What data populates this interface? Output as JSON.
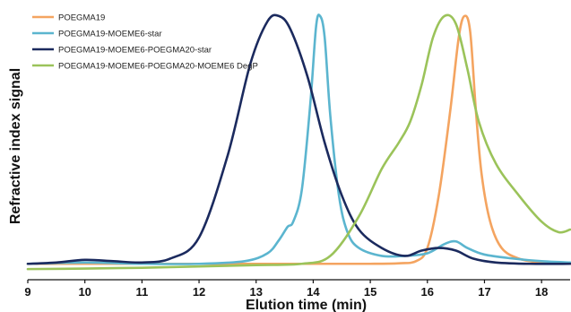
{
  "chart_data": {
    "type": "line",
    "title": "",
    "xlabel": "Elution time (min)",
    "ylabel": "Refractive index signal",
    "xlim": [
      9,
      18.5
    ],
    "ylim": [
      0,
      1
    ],
    "x_ticks": [
      9,
      10,
      11,
      12,
      13,
      14,
      15,
      16,
      17,
      18
    ],
    "y_ticks_shown": false,
    "grid": false,
    "legend_position": "top-left",
    "series": [
      {
        "name": "POEGMA19",
        "color": "#F4A460",
        "points": [
          [
            9.0,
            0.04
          ],
          [
            10.0,
            0.04
          ],
          [
            11.0,
            0.04
          ],
          [
            12.0,
            0.04
          ],
          [
            13.0,
            0.04
          ],
          [
            14.0,
            0.04
          ],
          [
            15.0,
            0.04
          ],
          [
            15.5,
            0.042
          ],
          [
            15.8,
            0.05
          ],
          [
            16.0,
            0.1
          ],
          [
            16.2,
            0.3
          ],
          [
            16.4,
            0.62
          ],
          [
            16.55,
            0.9
          ],
          [
            16.65,
            0.98
          ],
          [
            16.75,
            0.92
          ],
          [
            16.85,
            0.62
          ],
          [
            16.95,
            0.38
          ],
          [
            17.1,
            0.2
          ],
          [
            17.3,
            0.1
          ],
          [
            17.6,
            0.06
          ],
          [
            18.0,
            0.045
          ],
          [
            18.5,
            0.04
          ]
        ]
      },
      {
        "name": "POEGMA19-MOEME6-star",
        "color": "#5BB5CF",
        "points": [
          [
            9.0,
            0.04
          ],
          [
            10.0,
            0.045
          ],
          [
            11.0,
            0.04
          ],
          [
            12.0,
            0.04
          ],
          [
            12.8,
            0.05
          ],
          [
            13.2,
            0.08
          ],
          [
            13.4,
            0.13
          ],
          [
            13.55,
            0.18
          ],
          [
            13.65,
            0.2
          ],
          [
            13.8,
            0.32
          ],
          [
            13.95,
            0.65
          ],
          [
            14.05,
            0.94
          ],
          [
            14.12,
            0.98
          ],
          [
            14.2,
            0.9
          ],
          [
            14.3,
            0.6
          ],
          [
            14.45,
            0.3
          ],
          [
            14.6,
            0.16
          ],
          [
            14.8,
            0.1
          ],
          [
            15.2,
            0.07
          ],
          [
            15.6,
            0.07
          ],
          [
            16.0,
            0.08
          ],
          [
            16.3,
            0.115
          ],
          [
            16.5,
            0.125
          ],
          [
            16.7,
            0.1
          ],
          [
            17.0,
            0.075
          ],
          [
            17.5,
            0.06
          ],
          [
            18.0,
            0.05
          ],
          [
            18.5,
            0.045
          ]
        ]
      },
      {
        "name": "POEGMA19-MOEME6-POEGMA20-star",
        "color": "#1B2A5E",
        "points": [
          [
            9.0,
            0.04
          ],
          [
            9.5,
            0.045
          ],
          [
            10.0,
            0.055
          ],
          [
            10.5,
            0.05
          ],
          [
            11.0,
            0.045
          ],
          [
            11.5,
            0.06
          ],
          [
            12.0,
            0.14
          ],
          [
            12.5,
            0.45
          ],
          [
            12.9,
            0.8
          ],
          [
            13.2,
            0.96
          ],
          [
            13.4,
            0.98
          ],
          [
            13.6,
            0.93
          ],
          [
            13.9,
            0.75
          ],
          [
            14.2,
            0.5
          ],
          [
            14.5,
            0.3
          ],
          [
            14.8,
            0.17
          ],
          [
            15.2,
            0.1
          ],
          [
            15.6,
            0.07
          ],
          [
            15.9,
            0.09
          ],
          [
            16.2,
            0.1
          ],
          [
            16.5,
            0.09
          ],
          [
            16.8,
            0.06
          ],
          [
            17.2,
            0.045
          ],
          [
            17.8,
            0.04
          ],
          [
            18.5,
            0.04
          ]
        ]
      },
      {
        "name": "POEGMA19-MOEME6-POEGMA20-MOEME6 DegP",
        "color": "#9BC35A",
        "points": [
          [
            9.0,
            0.02
          ],
          [
            10.0,
            0.022
          ],
          [
            11.0,
            0.025
          ],
          [
            12.0,
            0.03
          ],
          [
            13.0,
            0.035
          ],
          [
            13.8,
            0.04
          ],
          [
            14.3,
            0.07
          ],
          [
            14.8,
            0.22
          ],
          [
            15.2,
            0.4
          ],
          [
            15.5,
            0.5
          ],
          [
            15.7,
            0.58
          ],
          [
            15.9,
            0.72
          ],
          [
            16.1,
            0.9
          ],
          [
            16.3,
            0.98
          ],
          [
            16.5,
            0.95
          ],
          [
            16.7,
            0.78
          ],
          [
            16.9,
            0.58
          ],
          [
            17.2,
            0.42
          ],
          [
            17.6,
            0.3
          ],
          [
            18.0,
            0.2
          ],
          [
            18.3,
            0.16
          ],
          [
            18.5,
            0.17
          ]
        ]
      }
    ]
  }
}
